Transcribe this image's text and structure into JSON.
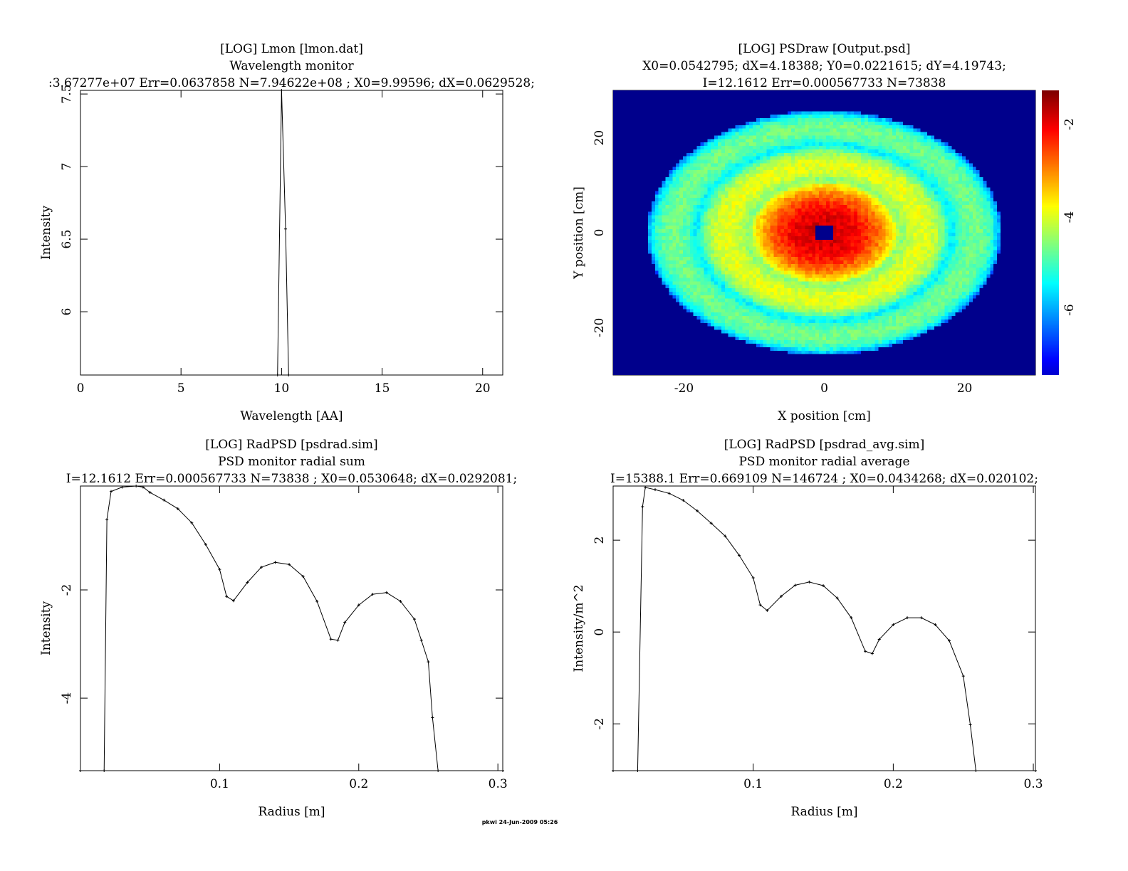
{
  "footer": "pkwi 24-Jun-2009 05:26",
  "chart_data": [
    {
      "type": "line",
      "title": "[LOG] Lmon [lmon.dat]",
      "subtitle": "Wavelength monitor",
      "stats": ":3.67277e+07 Err=0.0637858 N=7.94622e+08 ; X0=9.99596; dX=0.0629528;",
      "xlabel": "Wavelength [AA]",
      "ylabel": "Intensity",
      "xlim": [
        0,
        21
      ],
      "ylim": [
        5.564,
        7.525
      ],
      "xticks": [
        0,
        5,
        10,
        15,
        20
      ],
      "yticks": [
        6,
        6.5,
        7,
        7.5
      ],
      "x": [
        9.8,
        10.0,
        10.2,
        10.35
      ],
      "y": [
        5.564,
        7.525,
        6.57,
        5.564
      ]
    },
    {
      "type": "heatmap",
      "title": "[LOG] PSDraw [Output.psd]",
      "subtitle": "X0=0.0542795; dX=4.18388; Y0=0.0221615; dY=4.19743;",
      "stats": "I=12.1612 Err=0.000567733 N=73838",
      "xlabel": "X position [cm]",
      "ylabel": "Y position [cm]",
      "xlim": [
        -30.1,
        30.1
      ],
      "ylim": [
        -30,
        30
      ],
      "xticks": [
        -20,
        0,
        20
      ],
      "yticks": [
        -20,
        0,
        20
      ],
      "colorbar_ticks": [
        -2,
        -4,
        -6
      ],
      "clim": [
        -7.4,
        -1.27
      ],
      "colormap": "jet",
      "background": "#00008c"
    },
    {
      "type": "line",
      "title": "[LOG] RadPSD [psdrad.sim]",
      "subtitle": "PSD monitor radial sum",
      "stats": "I=12.1612 Err=0.000567733 N=73838 ; X0=0.0530648; dX=0.0292081;",
      "xlabel": "Radius [m]",
      "ylabel": "Intensity",
      "xlim": [
        0,
        0.3035
      ],
      "ylim": [
        -5.34,
        -0.08
      ],
      "xticks": [
        0.1,
        0.2,
        0.3
      ],
      "yticks": [
        -2,
        -4
      ],
      "x": [
        0,
        0.017,
        0.019,
        0.022,
        0.03,
        0.04,
        0.045,
        0.05,
        0.06,
        0.07,
        0.08,
        0.09,
        0.1,
        0.105,
        0.11,
        0.12,
        0.13,
        0.14,
        0.15,
        0.16,
        0.17,
        0.18,
        0.185,
        0.19,
        0.2,
        0.21,
        0.22,
        0.23,
        0.24,
        0.245,
        0.25,
        0.253,
        0.257,
        0.3035
      ],
      "y": [
        -5.34,
        -5.34,
        -0.7,
        -0.18,
        -0.1,
        -0.08,
        -0.1,
        -0.2,
        -0.34,
        -0.5,
        -0.76,
        -1.16,
        -1.62,
        -2.12,
        -2.2,
        -1.86,
        -1.58,
        -1.49,
        -1.53,
        -1.75,
        -2.21,
        -2.91,
        -2.93,
        -2.6,
        -2.28,
        -2.08,
        -2.05,
        -2.21,
        -2.54,
        -2.93,
        -3.33,
        -4.36,
        -5.34,
        -5.34
      ]
    },
    {
      "type": "line",
      "title": "[LOG] RadPSD [psdrad_avg.sim]",
      "subtitle": "PSD monitor radial average",
      "stats": "I=15388.1 Err=0.669109 N=146724 ; X0=0.0434268; dX=0.020102;",
      "xlabel": "Radius [m]",
      "ylabel": "Intensity/m^2",
      "xlim": [
        0,
        0.3015
      ],
      "ylim": [
        -3.02,
        3.18
      ],
      "xticks": [
        0.1,
        0.2,
        0.3
      ],
      "yticks": [
        2,
        0,
        -2
      ],
      "x": [
        0,
        0.0175,
        0.021,
        0.023,
        0.03,
        0.04,
        0.05,
        0.06,
        0.07,
        0.08,
        0.09,
        0.1,
        0.105,
        0.11,
        0.12,
        0.13,
        0.14,
        0.15,
        0.16,
        0.17,
        0.18,
        0.185,
        0.19,
        0.2,
        0.21,
        0.22,
        0.23,
        0.24,
        0.25,
        0.255,
        0.259,
        0.3015
      ],
      "y": [
        -3.02,
        -3.02,
        2.73,
        3.15,
        3.1,
        3.02,
        2.87,
        2.64,
        2.37,
        2.09,
        1.67,
        1.18,
        0.59,
        0.47,
        0.78,
        1.02,
        1.09,
        1.01,
        0.74,
        0.31,
        -0.42,
        -0.47,
        -0.16,
        0.16,
        0.31,
        0.31,
        0.16,
        -0.19,
        -0.96,
        -2.02,
        -3.02,
        -3.02
      ]
    }
  ]
}
